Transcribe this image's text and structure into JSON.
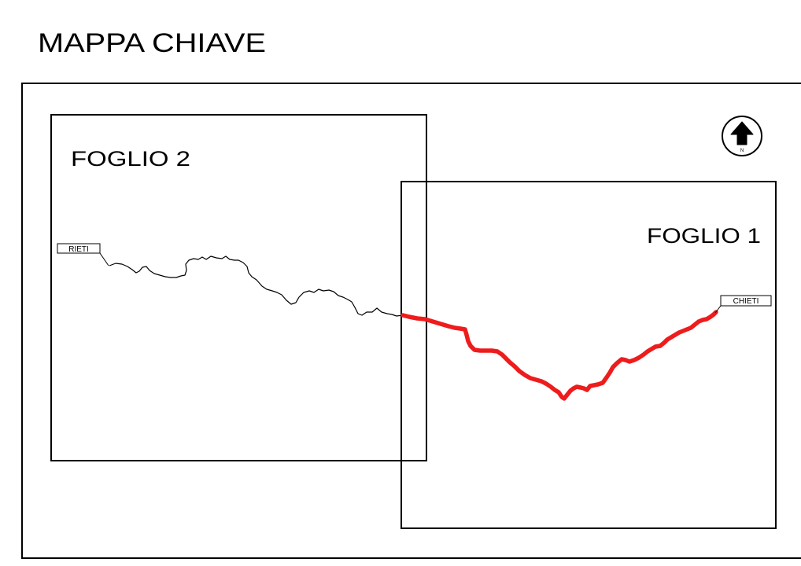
{
  "map": {
    "title": "MAPPA  CHIAVE",
    "sheets": [
      {
        "label": "FOGLIO  2"
      },
      {
        "label": "FOGLIO  1"
      }
    ],
    "cities": {
      "start": "RIETI",
      "end": "CHIETI"
    },
    "compass": {
      "icon": "north-arrow-icon",
      "label": "N"
    },
    "colors": {
      "route_highlight": "#ee1c1c",
      "route_other": "#000000",
      "linework": "#000000",
      "background": "#ffffff"
    }
  }
}
